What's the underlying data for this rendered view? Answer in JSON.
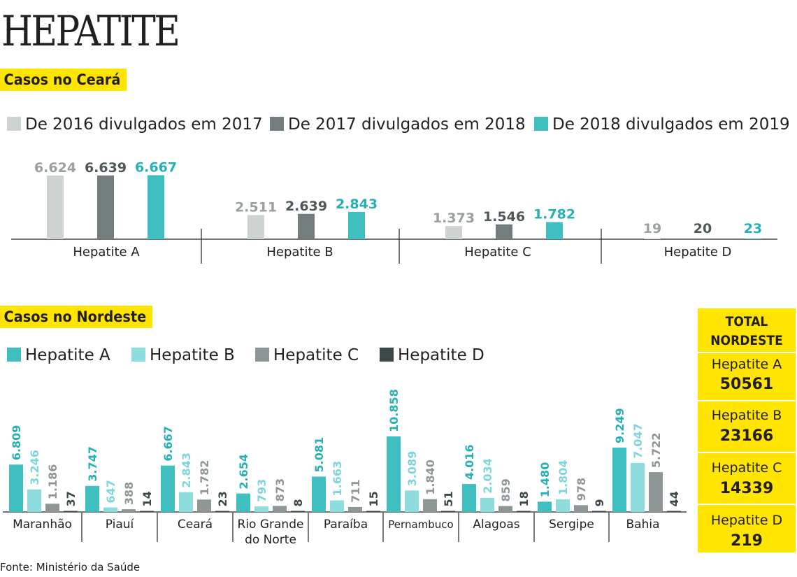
{
  "title": "HEPATITE",
  "source": "Fonte: Ministério da Saúde",
  "chart_data": [
    {
      "type": "bar",
      "title": "Casos no Ceará",
      "categories": [
        "Hepatite A",
        "Hepatite B",
        "Hepatite C",
        "Hepatite D"
      ],
      "series": [
        {
          "name": "De 2016 divulgados em 2017",
          "values": [
            6624,
            2511,
            1373,
            19
          ],
          "labels": [
            "6.624",
            "2.511",
            "1.373",
            "19"
          ],
          "color": "#cdd2d3"
        },
        {
          "name": "De 2017 divulgados em 2018",
          "values": [
            6639,
            2639,
            1546,
            20
          ],
          "labels": [
            "6.639",
            "2.639",
            "1.546",
            "20"
          ],
          "color": "#747d7d"
        },
        {
          "name": "De 2018 divulgados em 2019",
          "values": [
            6667,
            2843,
            1782,
            23
          ],
          "labels": [
            "6.667",
            "2.843",
            "1.782",
            "23"
          ],
          "color": "#3fbfbf"
        }
      ],
      "label_colors": [
        "#9aa0a2",
        "#4f5858",
        "#26b0b3"
      ],
      "ylim": [
        0,
        6700
      ]
    },
    {
      "type": "bar",
      "title": "Casos no Nordeste",
      "categories": [
        "Maranhão",
        "Piauí",
        "Ceará",
        "Rio Grande do Norte",
        "Paraíba",
        "Pernambuco",
        "Alagoas",
        "Sergipe",
        "Bahia"
      ],
      "series": [
        {
          "name": "Hepatite A",
          "values": [
            6809,
            3747,
            6667,
            2654,
            5081,
            10858,
            4016,
            1480,
            9249
          ],
          "labels": [
            "6.809",
            "3.747",
            "6.667",
            "2.654",
            "5.081",
            "10.858",
            "4.016",
            "1.480",
            "9.249"
          ],
          "color": "#3fbfbf"
        },
        {
          "name": "Hepatite B",
          "values": [
            3246,
            647,
            2843,
            793,
            1663,
            3089,
            2034,
            1804,
            7047
          ],
          "labels": [
            "3.246",
            "647",
            "2.843",
            "793",
            "1.663",
            "3.089",
            "2.034",
            "1.804",
            "7.047"
          ],
          "color": "#8fdcdf"
        },
        {
          "name": "Hepatite C",
          "values": [
            1186,
            388,
            1782,
            873,
            711,
            1840,
            859,
            978,
            5722
          ],
          "labels": [
            "1.186",
            "388",
            "1.782",
            "873",
            "711",
            "1.840",
            "859",
            "978",
            "5.722"
          ],
          "color": "#8f9796"
        },
        {
          "name": "Hepatite D",
          "values": [
            37,
            14,
            23,
            8,
            15,
            51,
            18,
            9,
            44
          ],
          "labels": [
            "37",
            "14",
            "23",
            "8",
            "15",
            "51",
            "18",
            "9",
            "44"
          ],
          "color": "#3e4747"
        }
      ],
      "label_colors": [
        "#26b0b3",
        "#7fd6da",
        "#8f9796",
        "#3e4747"
      ],
      "ylim": [
        0,
        10858
      ]
    }
  ],
  "total": {
    "title_line1": "TOTAL",
    "title_line2": "NORDESTE",
    "items": [
      {
        "label": "Hepatite A",
        "value": "50561"
      },
      {
        "label": "Hepatite B",
        "value": "23166"
      },
      {
        "label": "Hepatite C",
        "value": "14339"
      },
      {
        "label": "Hepatite D",
        "value": "219"
      }
    ]
  }
}
